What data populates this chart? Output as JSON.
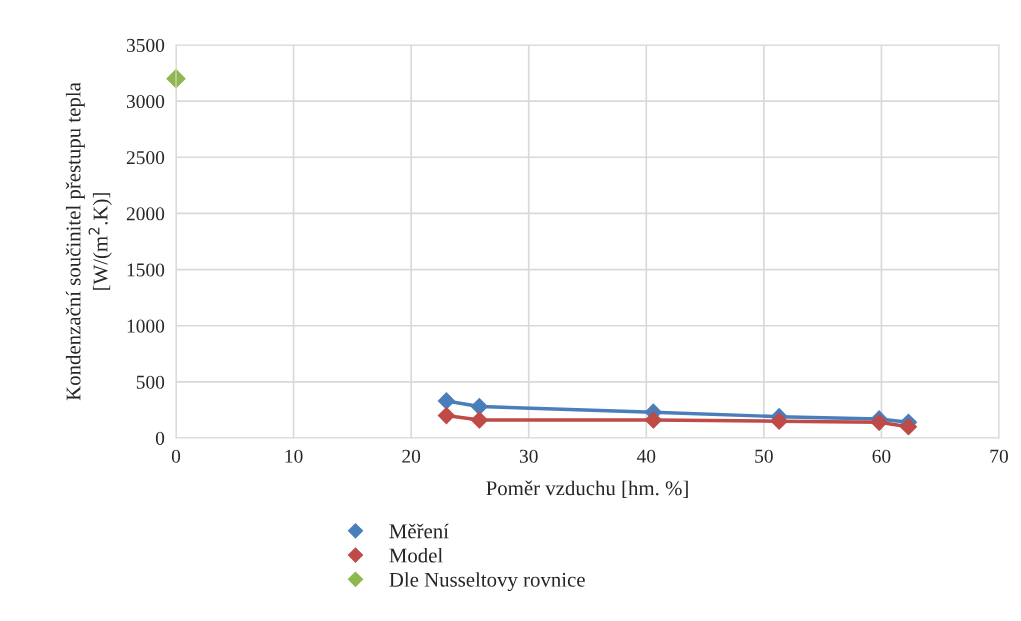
{
  "chart_data": {
    "type": "line",
    "xlabel": "Poměr vzduchu [hm. %]",
    "ylabel": "Kondenzační součinitel přestupu tepla\n[W/(m$^{2}$.K)]",
    "xlim": [
      0,
      70
    ],
    "xticks": [
      0,
      10,
      20,
      30,
      40,
      50,
      60,
      70
    ],
    "ylim": [
      0,
      3500
    ],
    "yticks": [
      0,
      500,
      1000,
      1500,
      2000,
      2500,
      3000,
      3500
    ],
    "grid": true,
    "legend": "bottom",
    "marker": "diamond",
    "line_style": "solid",
    "series": [
      {
        "name": "Měření",
        "color": "#4a7ebb",
        "x": [
          23.0,
          25.8,
          40.6,
          51.3,
          59.8,
          62.3
        ],
        "values": [
          330,
          280,
          230,
          190,
          170,
          140
        ]
      },
      {
        "name": "Model",
        "color": "#be4b48",
        "x": [
          23.0,
          25.8,
          40.6,
          51.3,
          59.8,
          62.3
        ],
        "values": [
          200,
          160,
          160,
          150,
          140,
          100
        ]
      },
      {
        "name": "Dle Nusseltovy rovnice",
        "color": "#8cb84e",
        "type": "scatter",
        "x": [
          0
        ],
        "values": [
          3200
        ]
      }
    ]
  }
}
